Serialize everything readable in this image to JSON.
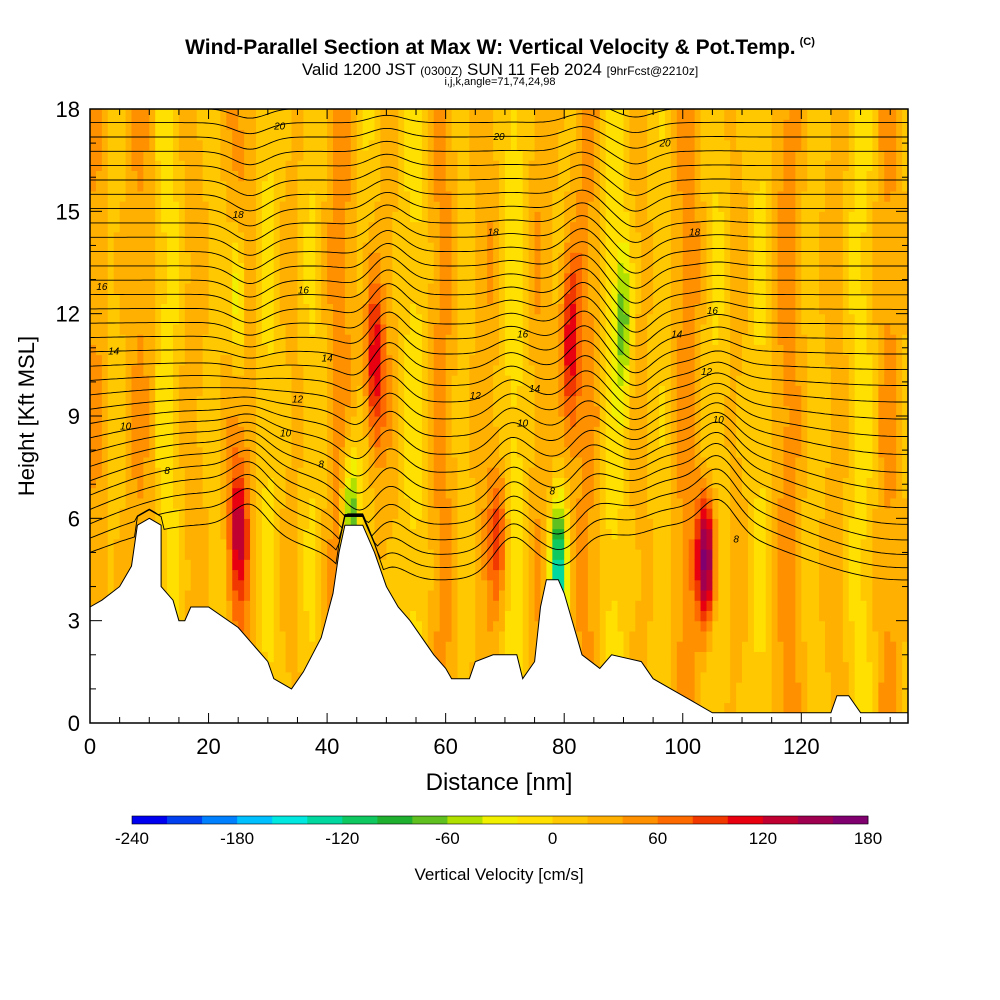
{
  "header": {
    "title": "Wind-Parallel Section at Max W: Vertical Velocity & Pot.Temp.",
    "title_mark": "(C)",
    "valid_prefix": "Valid 1200 JST",
    "valid_utc": "(0300Z)",
    "valid_date": "SUN 11 Feb 2024",
    "forecast": "[9hrFcst@2210z]",
    "indices": "i,j,k,angle=71,74,24,98"
  },
  "chart_data": {
    "type": "heatmap",
    "xlabel": "Distance [nm]",
    "ylabel": "Height [Kft MSL]",
    "xlim": [
      0,
      138
    ],
    "ylim": [
      0,
      18
    ],
    "x_ticks": [
      0,
      20,
      40,
      60,
      80,
      100,
      120
    ],
    "y_ticks": [
      0,
      3,
      6,
      9,
      12,
      15,
      18
    ],
    "colorbar": {
      "label": "Vertical Velocity [cm/s]",
      "range": [
        -240,
        180
      ],
      "step": 20,
      "tick_labels": [
        "-240",
        "-180",
        "-120",
        "-60",
        "0",
        "60",
        "120",
        "180"
      ],
      "colors": [
        "#0000f0",
        "#0040f0",
        "#0080ff",
        "#00c0ff",
        "#00e8e0",
        "#00d8a0",
        "#10c860",
        "#20b030",
        "#60c020",
        "#b0e000",
        "#f0f000",
        "#ffe000",
        "#ffc800",
        "#ffb000",
        "#ff9000",
        "#ff6a00",
        "#f03800",
        "#e80010",
        "#c00030",
        "#a00050",
        "#800070"
      ]
    },
    "theta_contour_labels": [
      {
        "label": "20",
        "x": 32,
        "y": 17.5
      },
      {
        "label": "20",
        "x": 69,
        "y": 17.2
      },
      {
        "label": "20",
        "x": 97,
        "y": 17.0
      },
      {
        "label": "18",
        "x": 25,
        "y": 14.9
      },
      {
        "label": "18",
        "x": 68,
        "y": 14.4
      },
      {
        "label": "18",
        "x": 102,
        "y": 14.4
      },
      {
        "label": "16",
        "x": 2,
        "y": 12.8
      },
      {
        "label": "16",
        "x": 36,
        "y": 12.7
      },
      {
        "label": "16",
        "x": 73,
        "y": 11.4
      },
      {
        "label": "16",
        "x": 105,
        "y": 12.1
      },
      {
        "label": "14",
        "x": 4,
        "y": 10.9
      },
      {
        "label": "14",
        "x": 40,
        "y": 10.7
      },
      {
        "label": "14",
        "x": 75,
        "y": 9.8
      },
      {
        "label": "14",
        "x": 99,
        "y": 11.4
      },
      {
        "label": "12",
        "x": 35,
        "y": 9.5
      },
      {
        "label": "12",
        "x": 65,
        "y": 9.6
      },
      {
        "label": "12",
        "x": 104,
        "y": 10.3
      },
      {
        "label": "10",
        "x": 6,
        "y": 8.7
      },
      {
        "label": "10",
        "x": 33,
        "y": 8.5
      },
      {
        "label": "10",
        "x": 73,
        "y": 8.8
      },
      {
        "label": "10",
        "x": 106,
        "y": 8.9
      },
      {
        "label": "8",
        "x": 13,
        "y": 7.4
      },
      {
        "label": "8",
        "x": 39,
        "y": 7.6
      },
      {
        "label": "8",
        "x": 78,
        "y": 6.8
      },
      {
        "label": "8",
        "x": 109,
        "y": 5.4
      }
    ],
    "velocity_maxima_cm_s": [
      {
        "x": 25,
        "y": 5.6,
        "value": 110
      },
      {
        "x": 48,
        "y": 10.5,
        "value": 130
      },
      {
        "x": 69,
        "y": 5.5,
        "value": 90
      },
      {
        "x": 81,
        "y": 11.0,
        "value": 120
      },
      {
        "x": 104,
        "y": 4.8,
        "value": 170
      }
    ],
    "velocity_minima_cm_s": [
      {
        "x": 79,
        "y": 4.2,
        "value": -140
      },
      {
        "x": 44,
        "y": 6.0,
        "value": -90
      },
      {
        "x": 25,
        "y": 12.5,
        "value": -60
      },
      {
        "x": 90,
        "y": 12.0,
        "value": -60
      }
    ],
    "terrain_kft": [
      [
        0,
        3.4
      ],
      [
        2,
        3.6
      ],
      [
        5,
        4.0
      ],
      [
        7,
        4.6
      ],
      [
        8,
        5.8
      ],
      [
        10,
        6.0
      ],
      [
        12,
        5.8
      ],
      [
        12,
        4.0
      ],
      [
        14,
        3.6
      ],
      [
        15,
        3.0
      ],
      [
        16,
        3.0
      ],
      [
        17,
        3.4
      ],
      [
        20,
        3.4
      ],
      [
        25,
        2.8
      ],
      [
        28,
        2.2
      ],
      [
        30,
        1.8
      ],
      [
        31,
        1.3
      ],
      [
        34,
        1.0
      ],
      [
        36,
        1.5
      ],
      [
        39,
        2.5
      ],
      [
        41,
        3.8
      ],
      [
        42,
        5.0
      ],
      [
        43,
        5.8
      ],
      [
        46,
        5.8
      ],
      [
        48,
        5.0
      ],
      [
        50,
        4.0
      ],
      [
        52,
        3.4
      ],
      [
        54,
        3.0
      ],
      [
        56,
        2.5
      ],
      [
        58,
        2.0
      ],
      [
        60,
        1.6
      ],
      [
        61,
        1.3
      ],
      [
        64,
        1.3
      ],
      [
        65,
        1.8
      ],
      [
        68,
        2.0
      ],
      [
        72,
        2.0
      ],
      [
        73,
        1.3
      ],
      [
        75,
        1.8
      ],
      [
        76,
        3.4
      ],
      [
        77,
        4.2
      ],
      [
        79,
        4.2
      ],
      [
        80,
        3.8
      ],
      [
        83,
        2.0
      ],
      [
        86,
        1.6
      ],
      [
        88,
        2.0
      ],
      [
        93,
        1.8
      ],
      [
        95,
        1.3
      ],
      [
        98,
        1.0
      ],
      [
        101,
        0.7
      ],
      [
        105,
        0.3
      ],
      [
        125,
        0.3
      ],
      [
        126,
        0.8
      ],
      [
        128,
        0.8
      ],
      [
        130,
        0.3
      ],
      [
        138,
        0.3
      ]
    ]
  }
}
